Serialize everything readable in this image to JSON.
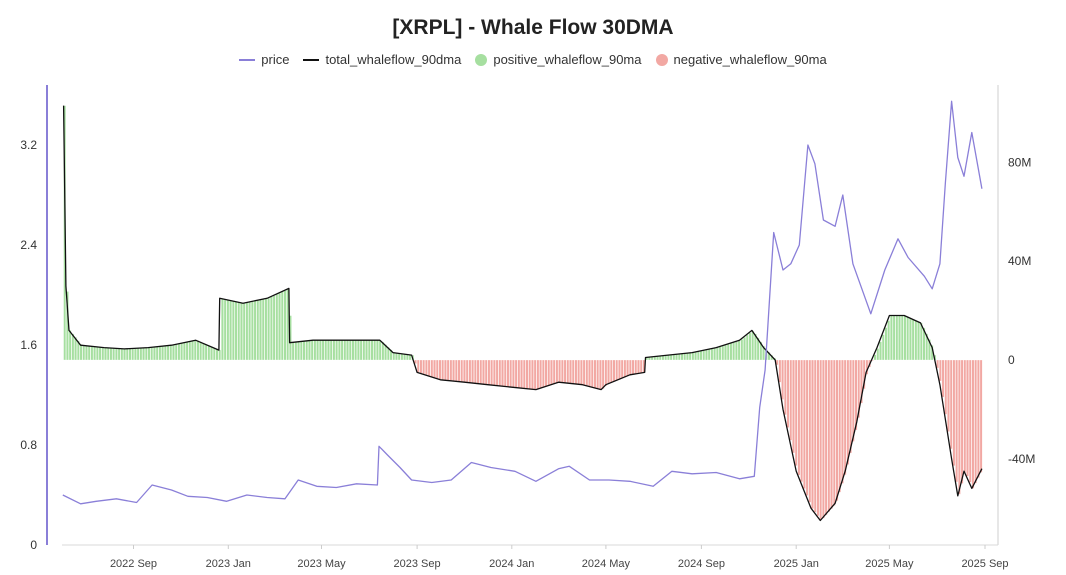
{
  "chart_data": {
    "type": "line",
    "title": "[XRPL] - Whale Flow 30DMA",
    "xlabel": "",
    "ylabel_left": "",
    "ylabel_right": "",
    "x_ticks": [
      "2022 Sep",
      "2023 Jan",
      "2023 May",
      "2023 Sep",
      "2024 Jan",
      "2024 May",
      "2024 Sep",
      "2025 Jan",
      "2025 May",
      "2025 Sep"
    ],
    "y_left_ticks": [
      "0",
      "0.8",
      "1.6",
      "2.4",
      "3.2"
    ],
    "y_right_ticks": [
      "-40M",
      "0",
      "40M",
      "80M"
    ],
    "ylim_left": [
      0,
      3.4
    ],
    "ylim_right": [
      -75,
      100
    ],
    "grid": false,
    "legend_placement": "top-center",
    "x_domain": [
      "2022-06-01",
      "2025-09-01"
    ],
    "series": [
      {
        "name": "price",
        "axis": "left",
        "color": "#8a7fd8",
        "points": [
          [
            "2022-06-02",
            0.4
          ],
          [
            "2022-06-25",
            0.33
          ],
          [
            "2022-07-15",
            0.35
          ],
          [
            "2022-08-10",
            0.37
          ],
          [
            "2022-09-05",
            0.34
          ],
          [
            "2022-09-25",
            0.48
          ],
          [
            "2022-10-20",
            0.44
          ],
          [
            "2022-11-10",
            0.39
          ],
          [
            "2022-12-05",
            0.38
          ],
          [
            "2022-12-30",
            0.35
          ],
          [
            "2023-01-25",
            0.4
          ],
          [
            "2023-02-20",
            0.38
          ],
          [
            "2023-03-15",
            0.37
          ],
          [
            "2023-04-01",
            0.52
          ],
          [
            "2023-04-25",
            0.47
          ],
          [
            "2023-05-20",
            0.46
          ],
          [
            "2023-06-15",
            0.49
          ],
          [
            "2023-07-12",
            0.48
          ],
          [
            "2023-07-14",
            0.79
          ],
          [
            "2023-07-25",
            0.72
          ],
          [
            "2023-08-10",
            0.62
          ],
          [
            "2023-08-25",
            0.52
          ],
          [
            "2023-09-20",
            0.5
          ],
          [
            "2023-10-15",
            0.52
          ],
          [
            "2023-11-10",
            0.66
          ],
          [
            "2023-12-05",
            0.62
          ],
          [
            "2024-01-05",
            0.59
          ],
          [
            "2024-02-01",
            0.51
          ],
          [
            "2024-03-01",
            0.61
          ],
          [
            "2024-03-15",
            0.63
          ],
          [
            "2024-04-10",
            0.52
          ],
          [
            "2024-05-05",
            0.52
          ],
          [
            "2024-06-01",
            0.51
          ],
          [
            "2024-07-01",
            0.47
          ],
          [
            "2024-07-25",
            0.59
          ],
          [
            "2024-08-20",
            0.57
          ],
          [
            "2024-09-20",
            0.58
          ],
          [
            "2024-10-20",
            0.53
          ],
          [
            "2024-11-08",
            0.55
          ],
          [
            "2024-11-15",
            1.1
          ],
          [
            "2024-11-22",
            1.4
          ],
          [
            "2024-12-03",
            2.5
          ],
          [
            "2024-12-15",
            2.2
          ],
          [
            "2024-12-25",
            2.25
          ],
          [
            "2025-01-05",
            2.4
          ],
          [
            "2025-01-16",
            3.2
          ],
          [
            "2025-01-25",
            3.05
          ],
          [
            "2025-02-05",
            2.6
          ],
          [
            "2025-02-20",
            2.55
          ],
          [
            "2025-03-02",
            2.8
          ],
          [
            "2025-03-15",
            2.25
          ],
          [
            "2025-04-07",
            1.85
          ],
          [
            "2025-04-25",
            2.2
          ],
          [
            "2025-05-12",
            2.45
          ],
          [
            "2025-05-25",
            2.3
          ],
          [
            "2025-06-15",
            2.15
          ],
          [
            "2025-06-25",
            2.05
          ],
          [
            "2025-07-05",
            2.25
          ],
          [
            "2025-07-12",
            2.9
          ],
          [
            "2025-07-20",
            3.55
          ],
          [
            "2025-07-28",
            3.1
          ],
          [
            "2025-08-05",
            2.95
          ],
          [
            "2025-08-15",
            3.3
          ],
          [
            "2025-08-28",
            2.85
          ]
        ]
      },
      {
        "name": "total_whaleflow_90dma",
        "axis": "right",
        "color": "#111111",
        "points": [
          [
            "2022-06-03",
            103
          ],
          [
            "2022-06-06",
            30
          ],
          [
            "2022-06-10",
            12
          ],
          [
            "2022-06-25",
            6
          ],
          [
            "2022-07-25",
            5
          ],
          [
            "2022-08-20",
            4.5
          ],
          [
            "2022-09-20",
            5
          ],
          [
            "2022-10-20",
            6
          ],
          [
            "2022-11-20",
            8
          ],
          [
            "2022-12-20",
            4
          ],
          [
            "2022-12-21",
            25
          ],
          [
            "2023-01-20",
            23
          ],
          [
            "2023-02-20",
            25
          ],
          [
            "2023-03-20",
            29
          ],
          [
            "2023-03-21",
            7
          ],
          [
            "2023-04-20",
            8
          ],
          [
            "2023-05-20",
            8
          ],
          [
            "2023-06-20",
            8
          ],
          [
            "2023-07-15",
            8
          ],
          [
            "2023-08-01",
            3
          ],
          [
            "2023-08-25",
            2
          ],
          [
            "2023-09-01",
            -5
          ],
          [
            "2023-10-01",
            -8
          ],
          [
            "2023-11-01",
            -9
          ],
          [
            "2023-12-01",
            -10
          ],
          [
            "2024-01-01",
            -11
          ],
          [
            "2024-02-01",
            -12
          ],
          [
            "2024-03-01",
            -9
          ],
          [
            "2024-04-01",
            -10
          ],
          [
            "2024-04-25",
            -12
          ],
          [
            "2024-05-01",
            -10
          ],
          [
            "2024-06-01",
            -6
          ],
          [
            "2024-06-20",
            -5
          ],
          [
            "2024-06-21",
            1
          ],
          [
            "2024-07-20",
            2
          ],
          [
            "2024-08-20",
            3
          ],
          [
            "2024-09-20",
            5
          ],
          [
            "2024-10-20",
            8
          ],
          [
            "2024-11-05",
            12
          ],
          [
            "2024-11-20",
            5
          ],
          [
            "2024-12-05",
            0
          ],
          [
            "2024-12-15",
            -20
          ],
          [
            "2025-01-01",
            -45
          ],
          [
            "2025-01-20",
            -60
          ],
          [
            "2025-02-01",
            -65
          ],
          [
            "2025-02-20",
            -58
          ],
          [
            "2025-03-05",
            -45
          ],
          [
            "2025-03-20",
            -25
          ],
          [
            "2025-04-01",
            -5
          ],
          [
            "2025-04-15",
            5
          ],
          [
            "2025-05-01",
            18
          ],
          [
            "2025-05-20",
            18
          ],
          [
            "2025-06-10",
            15
          ],
          [
            "2025-06-25",
            5
          ],
          [
            "2025-07-05",
            -10
          ],
          [
            "2025-07-20",
            -40
          ],
          [
            "2025-07-28",
            -55
          ],
          [
            "2025-08-05",
            -45
          ],
          [
            "2025-08-15",
            -52
          ],
          [
            "2025-08-28",
            -44
          ]
        ]
      },
      {
        "name": "positive_whaleflow_90ma",
        "axis": "right",
        "color": "#a6dfa0",
        "derived_from": "total_whaleflow_90dma",
        "sign": "positive"
      },
      {
        "name": "negative_whaleflow_90ma",
        "axis": "right",
        "color": "#f2a8a3",
        "derived_from": "total_whaleflow_90dma",
        "sign": "negative"
      }
    ]
  }
}
